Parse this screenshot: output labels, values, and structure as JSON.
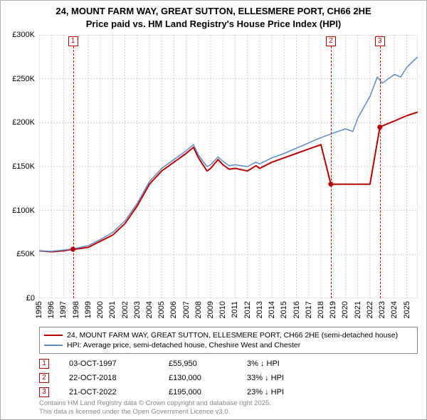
{
  "title_line1": "24, MOUNT FARM WAY, GREAT SUTTON, ELLESMERE PORT, CH66 2HE",
  "title_line2": "Price paid vs. HM Land Registry's House Price Index (HPI)",
  "chart": {
    "type": "line",
    "background_color": "#ffffff",
    "grid_color": "#d0d0d0",
    "axis_color": "#d0d0d0",
    "xlim": [
      1995,
      2025.9
    ],
    "ylim": [
      0,
      300000
    ],
    "y_ticks": [
      0,
      50000,
      100000,
      150000,
      200000,
      250000,
      300000
    ],
    "y_tick_labels": [
      "£0",
      "£50K",
      "£100K",
      "£150K",
      "£200K",
      "£250K",
      "£300K"
    ],
    "x_ticks": [
      1995,
      1996,
      1997,
      1998,
      1999,
      2000,
      2001,
      2002,
      2003,
      2004,
      2005,
      2006,
      2007,
      2008,
      2009,
      2010,
      2011,
      2012,
      2013,
      2014,
      2015,
      2016,
      2017,
      2018,
      2019,
      2020,
      2021,
      2022,
      2023,
      2024,
      2025
    ],
    "series": [
      {
        "name": "price_paid",
        "color": "#c00000",
        "width": 2,
        "points": [
          [
            1995,
            54000
          ],
          [
            1996,
            53000
          ],
          [
            1997,
            54000
          ],
          [
            1997.76,
            55950
          ],
          [
            1998,
            56000
          ],
          [
            1999,
            58000
          ],
          [
            2000,
            65000
          ],
          [
            2001,
            72000
          ],
          [
            2002,
            85000
          ],
          [
            2003,
            105000
          ],
          [
            2004,
            130000
          ],
          [
            2005,
            145000
          ],
          [
            2006,
            155000
          ],
          [
            2007,
            165000
          ],
          [
            2007.6,
            172000
          ],
          [
            2008,
            160000
          ],
          [
            2008.7,
            145000
          ],
          [
            2009,
            148000
          ],
          [
            2009.6,
            158000
          ],
          [
            2010,
            152000
          ],
          [
            2010.5,
            147000
          ],
          [
            2011,
            148000
          ],
          [
            2012,
            145000
          ],
          [
            2012.7,
            151000
          ],
          [
            2013,
            148000
          ],
          [
            2014,
            155000
          ],
          [
            2015,
            160000
          ],
          [
            2016,
            165000
          ],
          [
            2017,
            170000
          ],
          [
            2018,
            175000
          ],
          [
            2018.81,
            130000
          ],
          [
            2019.5,
            130000
          ],
          [
            2020,
            130000
          ],
          [
            2021,
            130000
          ],
          [
            2022,
            130000
          ],
          [
            2022.81,
            195000
          ],
          [
            2023.3,
            198000
          ],
          [
            2024,
            202000
          ],
          [
            2025,
            208000
          ],
          [
            2025.9,
            212000
          ]
        ]
      },
      {
        "name": "hpi",
        "color": "#5b8bc9",
        "width": 1.5,
        "points": [
          [
            1995,
            54000
          ],
          [
            1996,
            53500
          ],
          [
            1997,
            55000
          ],
          [
            1998,
            57000
          ],
          [
            1999,
            60000
          ],
          [
            2000,
            67000
          ],
          [
            2001,
            75000
          ],
          [
            2002,
            88000
          ],
          [
            2003,
            108000
          ],
          [
            2004,
            133000
          ],
          [
            2005,
            148000
          ],
          [
            2006,
            158000
          ],
          [
            2007,
            168000
          ],
          [
            2007.6,
            175000
          ],
          [
            2008,
            163000
          ],
          [
            2008.7,
            150000
          ],
          [
            2009,
            152000
          ],
          [
            2009.6,
            161000
          ],
          [
            2010,
            156000
          ],
          [
            2010.5,
            151000
          ],
          [
            2011,
            152000
          ],
          [
            2012,
            150000
          ],
          [
            2012.7,
            155000
          ],
          [
            2013,
            153000
          ],
          [
            2014,
            160000
          ],
          [
            2015,
            165000
          ],
          [
            2016,
            171000
          ],
          [
            2017,
            177000
          ],
          [
            2018,
            183000
          ],
          [
            2019,
            188000
          ],
          [
            2020,
            193000
          ],
          [
            2020.6,
            190000
          ],
          [
            2021,
            205000
          ],
          [
            2022,
            230000
          ],
          [
            2022.6,
            252000
          ],
          [
            2023,
            245000
          ],
          [
            2023.5,
            250000
          ],
          [
            2024,
            255000
          ],
          [
            2024.5,
            252000
          ],
          [
            2025,
            263000
          ],
          [
            2025.9,
            275000
          ]
        ]
      }
    ],
    "markers": [
      {
        "n": "1",
        "year": 1997.76,
        "value": 55950
      },
      {
        "n": "2",
        "year": 2018.81,
        "value": 130000
      },
      {
        "n": "3",
        "year": 2022.81,
        "value": 195000
      }
    ],
    "marker_point_color": "#c00000",
    "marker_point_radius": 3.5
  },
  "legend": {
    "series1_color": "#c00000",
    "series1_label": "24, MOUNT FARM WAY, GREAT SUTTON, ELLESMERE PORT, CH66 2HE (semi-detached house)",
    "series2_color": "#5b8bc9",
    "series2_label": "HPI: Average price, semi-detached house, Cheshire West and Chester"
  },
  "transactions": [
    {
      "n": "1",
      "date": "03-OCT-1997",
      "price": "£55,950",
      "diff": "3% ↓ HPI"
    },
    {
      "n": "2",
      "date": "22-OCT-2018",
      "price": "£130,000",
      "diff": "33% ↓ HPI"
    },
    {
      "n": "3",
      "date": "21-OCT-2022",
      "price": "£195,000",
      "diff": "23% ↓ HPI"
    }
  ],
  "footer_line1": "Contains HM Land Registry data © Crown copyright and database right 2025.",
  "footer_line2": "This data is licensed under the Open Government Licence v3.0."
}
